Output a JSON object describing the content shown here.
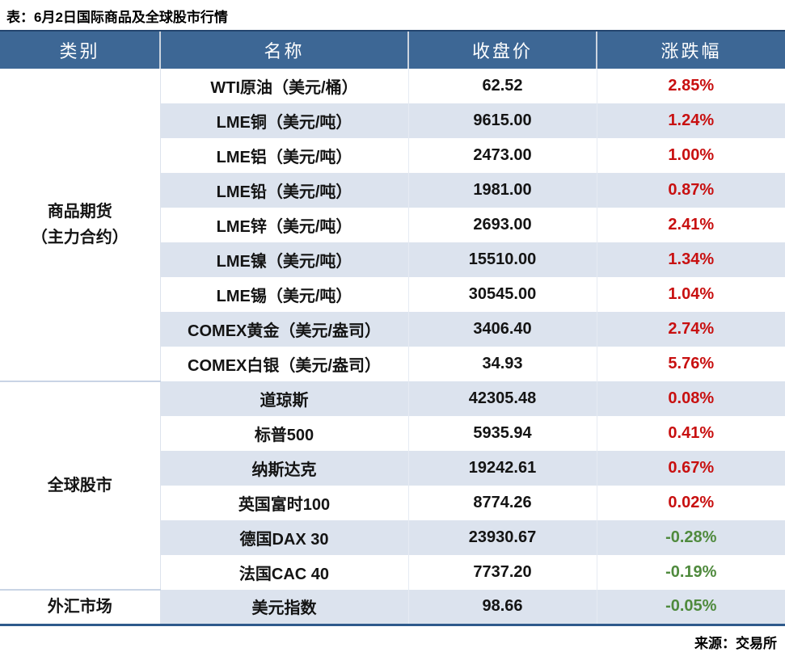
{
  "colors": {
    "header_bg": "#3d6795",
    "header_top_border": "#24456e",
    "row_stripe": "#dce3ee",
    "positive_change": "#c81010",
    "negative_change": "#4f8a3d",
    "table_bottom_border": "#2e5a8c"
  },
  "chart_data": {
    "type": "table",
    "title": "表：6月2日国际商品及全球股市行情",
    "columns": [
      "类别",
      "名称",
      "收盘价",
      "涨跌幅"
    ],
    "groups": [
      {
        "label": "商品期货\n（主力合约）",
        "span": 9
      },
      {
        "label": "全球股市",
        "span": 6
      },
      {
        "label": "外汇市场",
        "span": 1
      }
    ],
    "rows": [
      {
        "name": "WTI原油（美元/桶）",
        "close": "62.52",
        "change": "2.85%",
        "dir": "up"
      },
      {
        "name": "LME铜（美元/吨）",
        "close": "9615.00",
        "change": "1.24%",
        "dir": "up"
      },
      {
        "name": "LME铝（美元/吨）",
        "close": "2473.00",
        "change": "1.00%",
        "dir": "up"
      },
      {
        "name": "LME铅（美元/吨）",
        "close": "1981.00",
        "change": "0.87%",
        "dir": "up"
      },
      {
        "name": "LME锌（美元/吨）",
        "close": "2693.00",
        "change": "2.41%",
        "dir": "up"
      },
      {
        "name": "LME镍（美元/吨）",
        "close": "15510.00",
        "change": "1.34%",
        "dir": "up"
      },
      {
        "name": "LME锡（美元/吨）",
        "close": "30545.00",
        "change": "1.04%",
        "dir": "up"
      },
      {
        "name": "COMEX黄金（美元/盎司）",
        "close": "3406.40",
        "change": "2.74%",
        "dir": "up"
      },
      {
        "name": "COMEX白银（美元/盎司）",
        "close": "34.93",
        "change": "5.76%",
        "dir": "up"
      },
      {
        "name": "道琼斯",
        "close": "42305.48",
        "change": "0.08%",
        "dir": "up"
      },
      {
        "name": "标普500",
        "close": "5935.94",
        "change": "0.41%",
        "dir": "up"
      },
      {
        "name": "纳斯达克",
        "close": "19242.61",
        "change": "0.67%",
        "dir": "up"
      },
      {
        "name": "英国富时100",
        "close": "8774.26",
        "change": "0.02%",
        "dir": "up"
      },
      {
        "name": "德国DAX 30",
        "close": "23930.67",
        "change": "-0.28%",
        "dir": "down"
      },
      {
        "name": "法国CAC 40",
        "close": "7737.20",
        "change": "-0.19%",
        "dir": "down"
      },
      {
        "name": "美元指数",
        "close": "98.66",
        "change": "-0.05%",
        "dir": "down"
      }
    ],
    "source": "来源：交易所"
  }
}
